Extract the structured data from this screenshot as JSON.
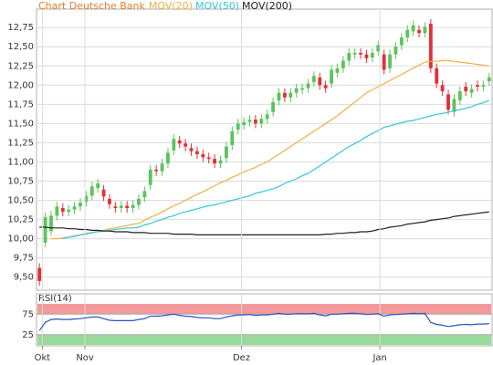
{
  "chart_data": [
    {
      "type": "candlestick",
      "title": "Chart Deutsche Bank",
      "title_color": "#e0802a",
      "up_color": "#5cc45c",
      "down_color": "#e0303a",
      "grid": true,
      "xlim": [
        -0.5,
        77.5
      ],
      "ylim": [
        9.33,
        12.99
      ],
      "yticks": [
        {
          "value": 9.5,
          "label": "9,50"
        },
        {
          "value": 9.75,
          "label": "9,75"
        },
        {
          "value": 10,
          "label": "10,00"
        },
        {
          "value": 10.25,
          "label": "10,25"
        },
        {
          "value": 10.5,
          "label": "10,50"
        },
        {
          "value": 10.75,
          "label": "10,75"
        },
        {
          "value": 11,
          "label": "11,00"
        },
        {
          "value": 11.25,
          "label": "11,25"
        },
        {
          "value": 11.5,
          "label": "11,50"
        },
        {
          "value": 11.75,
          "label": "11,75"
        },
        {
          "value": 12,
          "label": "12,00"
        },
        {
          "value": 12.25,
          "label": "12,25"
        },
        {
          "value": 12.5,
          "label": "12,50"
        },
        {
          "value": 12.75,
          "label": "12,75"
        }
      ],
      "open": [
        9.62,
        9.95,
        10.1,
        10.3,
        10.4,
        10.35,
        10.38,
        10.42,
        10.48,
        10.56,
        10.66,
        10.64,
        10.52,
        10.42,
        10.4,
        10.43,
        10.4,
        10.44,
        10.54,
        10.7,
        10.9,
        10.88,
        10.98,
        11.15,
        11.28,
        11.24,
        11.18,
        11.14,
        11.1,
        11.06,
        11.04,
        10.98,
        11.05,
        11.22,
        11.42,
        11.48,
        11.52,
        11.55,
        11.5,
        11.56,
        11.65,
        11.8,
        11.9,
        11.84,
        11.9,
        11.94,
        11.96,
        12.04,
        12.1,
        12.0,
        12.02,
        12.16,
        12.22,
        12.32,
        12.4,
        12.42,
        12.4,
        12.36,
        12.44,
        12.4,
        12.22,
        12.4,
        12.52,
        12.62,
        12.7,
        12.72,
        12.68,
        12.8,
        12.22,
        12.0,
        11.88,
        11.65,
        11.8,
        11.98,
        11.9,
        12.0,
        11.98,
        12.05
      ],
      "high": [
        9.68,
        10.34,
        10.36,
        10.48,
        10.46,
        10.44,
        10.48,
        10.53,
        10.62,
        10.74,
        10.78,
        10.7,
        10.58,
        10.48,
        10.49,
        10.49,
        10.5,
        10.58,
        10.68,
        10.96,
        10.96,
        11.04,
        11.18,
        11.36,
        11.34,
        11.3,
        11.24,
        11.2,
        11.16,
        11.12,
        11.1,
        11.08,
        11.26,
        11.46,
        11.56,
        11.58,
        11.61,
        11.61,
        11.62,
        11.68,
        11.84,
        11.96,
        11.96,
        11.96,
        12.02,
        12.02,
        12.08,
        12.18,
        12.16,
        12.06,
        12.26,
        12.28,
        12.38,
        12.48,
        12.48,
        12.48,
        12.46,
        12.48,
        12.58,
        12.46,
        12.46,
        12.56,
        12.68,
        12.78,
        12.84,
        12.78,
        12.82,
        12.86,
        12.28,
        12.06,
        11.94,
        11.88,
        11.98,
        12.04,
        12.01,
        12.06,
        12.06,
        12.16
      ],
      "low": [
        9.39,
        9.89,
        10.04,
        10.24,
        10.29,
        10.29,
        10.32,
        10.36,
        10.42,
        10.5,
        10.6,
        10.49,
        10.39,
        10.34,
        10.34,
        10.34,
        10.34,
        10.38,
        10.48,
        10.64,
        10.82,
        10.82,
        10.92,
        11.09,
        11.18,
        11.14,
        11.08,
        11.04,
        11.0,
        10.98,
        10.92,
        10.92,
        10.99,
        11.16,
        11.36,
        11.42,
        11.46,
        11.44,
        11.44,
        11.5,
        11.59,
        11.74,
        11.78,
        11.78,
        11.84,
        11.88,
        11.9,
        11.98,
        11.94,
        11.9,
        11.96,
        12.1,
        12.16,
        12.26,
        12.34,
        12.34,
        12.29,
        12.3,
        12.38,
        12.14,
        12.16,
        12.34,
        12.46,
        12.56,
        12.64,
        12.62,
        12.62,
        12.16,
        11.96,
        11.86,
        11.62,
        11.59,
        11.74,
        11.86,
        11.84,
        11.92,
        11.92,
        11.99
      ],
      "close": [
        9.45,
        10.28,
        10.3,
        10.42,
        10.35,
        10.38,
        10.42,
        10.47,
        10.56,
        10.68,
        10.72,
        10.55,
        10.45,
        10.4,
        10.43,
        10.4,
        10.44,
        10.52,
        10.62,
        10.9,
        10.88,
        10.98,
        11.12,
        11.3,
        11.24,
        11.2,
        11.14,
        11.1,
        11.06,
        11.04,
        10.98,
        11.02,
        11.2,
        11.4,
        11.5,
        11.52,
        11.55,
        11.5,
        11.56,
        11.62,
        11.78,
        11.9,
        11.84,
        11.9,
        11.96,
        11.96,
        12.02,
        12.12,
        12.0,
        11.96,
        12.2,
        12.22,
        12.32,
        12.42,
        12.42,
        12.4,
        12.35,
        12.42,
        12.52,
        12.2,
        12.4,
        12.5,
        12.62,
        12.72,
        12.78,
        12.68,
        12.76,
        12.22,
        12.02,
        11.92,
        11.68,
        11.82,
        11.92,
        11.92,
        11.95,
        11.98,
        12.0,
        12.1
      ],
      "series": [
        {
          "name": "MOV(20)",
          "color": "#f0b040",
          "values": [
            null,
            null,
            10.0,
            10.0,
            10.01,
            10.02,
            10.04,
            10.05,
            10.07,
            10.08,
            10.1,
            10.11,
            10.13,
            10.14,
            10.16,
            10.17,
            10.19,
            10.2,
            10.24,
            10.28,
            10.31,
            10.35,
            10.39,
            10.43,
            10.46,
            10.5,
            10.54,
            10.58,
            10.61,
            10.65,
            10.69,
            10.73,
            10.76,
            10.8,
            10.83,
            10.87,
            10.9,
            10.93,
            10.97,
            11.0,
            11.05,
            11.1,
            11.15,
            11.2,
            11.25,
            11.3,
            11.35,
            11.4,
            11.45,
            11.5,
            11.55,
            11.6,
            11.66,
            11.72,
            11.78,
            11.84,
            11.9,
            11.94,
            11.98,
            12.02,
            12.06,
            12.1,
            12.14,
            12.18,
            12.22,
            12.26,
            12.3,
            12.31,
            12.31,
            12.32,
            12.32,
            12.31,
            12.3,
            12.29,
            12.28,
            12.27,
            12.26,
            12.25
          ]
        },
        {
          "name": "MOV(50)",
          "color": "#30c8e0",
          "values": [
            null,
            null,
            null,
            null,
            10.0,
            10.02,
            10.03,
            10.05,
            10.06,
            10.08,
            10.09,
            10.1,
            10.11,
            10.12,
            10.13,
            10.14,
            10.14,
            10.15,
            10.18,
            10.2,
            10.23,
            10.25,
            10.28,
            10.3,
            10.33,
            10.35,
            10.37,
            10.39,
            10.41,
            10.43,
            10.44,
            10.46,
            10.48,
            10.5,
            10.52,
            10.54,
            10.56,
            10.59,
            10.61,
            10.63,
            10.65,
            10.68,
            10.72,
            10.75,
            10.78,
            10.82,
            10.85,
            10.9,
            10.95,
            11.0,
            11.05,
            11.1,
            11.15,
            11.2,
            11.24,
            11.28,
            11.33,
            11.37,
            11.41,
            11.45,
            11.47,
            11.49,
            11.51,
            11.53,
            11.54,
            11.56,
            11.58,
            11.6,
            11.62,
            11.63,
            11.65,
            11.67,
            11.68,
            11.7,
            11.72,
            11.75,
            11.77,
            11.8
          ]
        },
        {
          "name": "MOV(200)",
          "color": "#202020",
          "values": [
            10.15,
            10.15,
            10.14,
            10.14,
            10.14,
            10.13,
            10.13,
            10.12,
            10.12,
            10.11,
            10.11,
            10.1,
            10.1,
            10.09,
            10.09,
            10.09,
            10.08,
            10.08,
            10.08,
            10.07,
            10.07,
            10.07,
            10.07,
            10.06,
            10.06,
            10.06,
            10.06,
            10.05,
            10.05,
            10.05,
            10.05,
            10.05,
            10.05,
            10.05,
            10.05,
            10.05,
            10.05,
            10.05,
            10.05,
            10.05,
            10.05,
            10.05,
            10.05,
            10.05,
            10.05,
            10.05,
            10.05,
            10.05,
            10.05,
            10.06,
            10.06,
            10.07,
            10.07,
            10.08,
            10.08,
            10.09,
            10.09,
            10.1,
            10.12,
            10.13,
            10.15,
            10.16,
            10.17,
            10.19,
            10.2,
            10.21,
            10.22,
            10.24,
            10.25,
            10.26,
            10.27,
            10.29,
            10.3,
            10.31,
            10.32,
            10.33,
            10.34,
            10.35
          ]
        }
      ]
    },
    {
      "type": "line",
      "title": "RSI(14)",
      "grid": true,
      "xlim": [
        -0.5,
        77.5
      ],
      "ylim": [
        0,
        100
      ],
      "yticks": [
        25,
        75
      ],
      "xticks": [
        {
          "value": 0.5,
          "label": "Okt"
        },
        {
          "value": 7.8,
          "label": "Nov"
        },
        {
          "value": 34.6,
          "label": "Dez"
        },
        {
          "value": 58.3,
          "label": "Jan"
        }
      ],
      "zones": [
        {
          "from": 75,
          "to": 100,
          "color": "#f08080"
        },
        {
          "from": 0,
          "to": 25,
          "color": "#80d080"
        }
      ],
      "series": [
        {
          "name": "RSI(14)",
          "color": "#3050c0",
          "values": [
            35,
            55,
            62,
            63,
            62,
            62,
            63,
            64,
            66,
            68,
            68,
            64,
            60,
            59,
            59,
            59,
            59,
            62,
            64,
            70,
            70,
            71,
            73,
            75,
            72,
            70,
            69,
            67,
            66,
            66,
            64,
            64,
            68,
            71,
            73,
            73,
            74,
            72,
            73,
            73,
            75,
            77,
            75,
            75,
            76,
            76,
            76,
            77,
            73,
            71,
            75,
            75,
            76,
            77,
            77,
            76,
            74,
            75,
            76,
            70,
            73,
            74,
            75,
            76,
            77,
            76,
            77,
            55,
            50,
            48,
            45,
            47,
            49,
            50,
            49,
            51,
            51,
            52
          ]
        }
      ]
    }
  ]
}
